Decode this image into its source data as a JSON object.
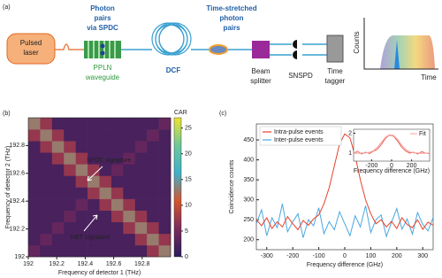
{
  "diagram": {
    "panel_label": "(a)",
    "laser": [
      "Pulsed",
      "laser"
    ],
    "spdc": [
      "Photon",
      "pairs",
      "via SPDC"
    ],
    "ppln": [
      "PPLN",
      "waveguide"
    ],
    "dcf": "DCF",
    "stretched": [
      "Time-stretched",
      "photon",
      "pairs"
    ],
    "splitter": [
      "Beam",
      "splitter"
    ],
    "snspd": "SNSPD",
    "tagger": [
      "Time",
      "tagger"
    ],
    "counts": "Counts",
    "time": "Time"
  },
  "chart_data": [
    {
      "type": "heatmap",
      "panel_label": "(b)",
      "xlabel": "Frequency of detector 1 (THz)",
      "ylabel": "Frequency of detector 2 (THz)",
      "colorbar_label": "CAR",
      "xlim": [
        192,
        193
      ],
      "ylim": [
        192,
        193
      ],
      "xticks": [
        192,
        192.2,
        192.4,
        192.6,
        192.8
      ],
      "yticks": [
        192,
        192.2,
        192.4,
        192.6,
        192.8
      ],
      "zlim": [
        0,
        27
      ],
      "zticks": [
        0,
        5,
        10,
        15,
        20,
        25
      ],
      "colormap": [
        "#2a1b5e",
        "#7a2a5c",
        "#d4562e",
        "#3fb0c8",
        "#6cc89a",
        "#f0e230"
      ],
      "z": [
        [
          4,
          2,
          2,
          2,
          2,
          2,
          2,
          2,
          2,
          2,
          7,
          13
        ],
        [
          2,
          4,
          2,
          2,
          2,
          2,
          2,
          2,
          2,
          7,
          13,
          7
        ],
        [
          2,
          2,
          4,
          2,
          2,
          2,
          2,
          2,
          7,
          13,
          7,
          2
        ],
        [
          2,
          2,
          2,
          4,
          2,
          2,
          2,
          7,
          13,
          7,
          2,
          2
        ],
        [
          2,
          2,
          2,
          2,
          4,
          2,
          7,
          13,
          7,
          2,
          2,
          2
        ],
        [
          2,
          2,
          2,
          2,
          2,
          7,
          13,
          7,
          2,
          2,
          2,
          2
        ],
        [
          2,
          2,
          2,
          2,
          7,
          13,
          7,
          2,
          2,
          2,
          2,
          2
        ],
        [
          2,
          2,
          2,
          7,
          13,
          7,
          2,
          4,
          2,
          2,
          2,
          2
        ],
        [
          2,
          2,
          7,
          13,
          7,
          2,
          2,
          2,
          4,
          2,
          2,
          2
        ],
        [
          2,
          7,
          13,
          7,
          2,
          2,
          2,
          2,
          2,
          4,
          2,
          2
        ],
        [
          7,
          13,
          7,
          2,
          2,
          2,
          2,
          2,
          2,
          2,
          4,
          2
        ],
        [
          13,
          7,
          2,
          2,
          2,
          2,
          2,
          2,
          2,
          2,
          2,
          4
        ]
      ],
      "annotations": [
        "SPDC signature",
        "HBT signature"
      ]
    },
    {
      "type": "line",
      "panel_label": "(c)",
      "xlabel": "Frequency difference (GHz)",
      "ylabel": "Coincidence counts",
      "legend": "upper left",
      "xlim": [
        -340,
        340
      ],
      "ylim": [
        175,
        490
      ],
      "xticks": [
        -300,
        -200,
        -100,
        0,
        100,
        200,
        300
      ],
      "yticks": [
        200,
        250,
        300,
        350,
        400,
        450
      ],
      "x": [
        -340,
        -320,
        -300,
        -280,
        -260,
        -240,
        -220,
        -200,
        -180,
        -160,
        -140,
        -120,
        -100,
        -80,
        -60,
        -40,
        -20,
        0,
        20,
        40,
        60,
        80,
        100,
        120,
        140,
        160,
        180,
        200,
        220,
        240,
        260,
        280,
        300,
        320,
        340
      ],
      "series": [
        {
          "name": "Intra-pulse events",
          "color": "#e8402a",
          "values": [
            250,
            235,
            255,
            228,
            245,
            232,
            258,
            240,
            225,
            248,
            236,
            252,
            262,
            290,
            330,
            385,
            440,
            465,
            455,
            410,
            350,
            300,
            265,
            240,
            250,
            232,
            246,
            228,
            255,
            238,
            230,
            250,
            226,
            244,
            236
          ]
        },
        {
          "name": "Inter-pulse events",
          "color": "#4aa8e0",
          "values": [
            240,
            275,
            210,
            255,
            230,
            290,
            220,
            245,
            265,
            205,
            250,
            235,
            280,
            215,
            245,
            225,
            270,
            240,
            210,
            260,
            232,
            285,
            218,
            250,
            262,
            208,
            244,
            278,
            226,
            252,
            214,
            268,
            238,
            222,
            256
          ]
        }
      ],
      "inset": {
        "xlabel": "Frequency difference (GHz)",
        "xlim": [
          -380,
          380
        ],
        "ylim": [
          0.6,
          2.2
        ],
        "xticks": [
          -200,
          0,
          200
        ],
        "yticks": [
          1,
          2
        ],
        "x": [
          -380,
          -340,
          -300,
          -260,
          -220,
          -180,
          -140,
          -100,
          -60,
          -20,
          20,
          60,
          100,
          140,
          180,
          220,
          260,
          300,
          340,
          380
        ],
        "series": [
          {
            "color": "#e8402a",
            "values": [
              1.0,
              1.1,
              0.95,
              1.05,
              0.98,
              1.1,
              1.2,
              1.45,
              1.75,
              1.9,
              1.85,
              1.6,
              1.3,
              1.1,
              1.0,
              1.05,
              0.95,
              1.08,
              1.0,
              0.97
            ]
          },
          {
            "name": "Fit",
            "color": "#f4a0a0",
            "values": [
              1.0,
              1.0,
              1.0,
              1.01,
              1.04,
              1.12,
              1.3,
              1.55,
              1.8,
              1.92,
              1.88,
              1.68,
              1.4,
              1.18,
              1.06,
              1.02,
              1.0,
              1.0,
              1.0,
              1.0
            ]
          }
        ]
      }
    }
  ]
}
